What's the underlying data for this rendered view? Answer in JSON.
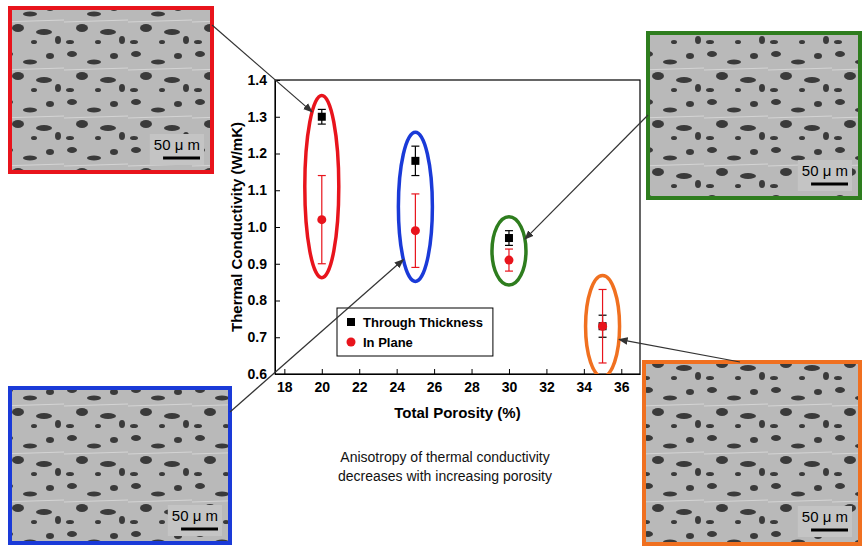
{
  "chart_data": {
    "type": "scatter",
    "x_label": "Total Porosity (%)",
    "y_label": "Thermal Conductivity (W/mK)",
    "x": [
      20,
      25,
      30,
      35
    ],
    "xlim": [
      17.5,
      37
    ],
    "xticks": [
      18,
      20,
      22,
      24,
      26,
      28,
      30,
      32,
      34,
      36
    ],
    "ylim": [
      0.6,
      1.4
    ],
    "yticks": [
      0.6,
      0.7,
      0.8,
      0.9,
      {
        "value": 1,
        "label": "1.0"
      },
      1.1,
      1.2,
      1.3,
      1.4
    ],
    "grid": false,
    "legend": "lower-left",
    "series": [
      {
        "name": "Through Thickness",
        "color": "#000000",
        "marker": "square",
        "values": [
          1.3,
          1.18,
          0.97,
          0.73
        ],
        "errors": [
          0.02,
          0.04,
          0.02,
          0.03
        ]
      },
      {
        "name": "In Plane",
        "color": "#e8141c",
        "marker": "circle",
        "values": [
          1.02,
          0.99,
          0.91,
          0.73
        ],
        "errors": [
          0.12,
          0.1,
          0.03,
          0.1
        ]
      }
    ],
    "highlights": [
      {
        "x": 20,
        "color": "#e8141c",
        "scale_bar": "50 μ m"
      },
      {
        "x": 25,
        "color": "#1a3ad8",
        "scale_bar": "50 μ m"
      },
      {
        "x": 30,
        "color": "#2e7d1e",
        "scale_bar": "50 μ m"
      },
      {
        "x": 35,
        "color": "#f07020",
        "scale_bar": "50 μ m"
      }
    ],
    "caption": [
      "Anisotropy of thermal conductivity",
      "decreases with increasing porosity"
    ]
  }
}
